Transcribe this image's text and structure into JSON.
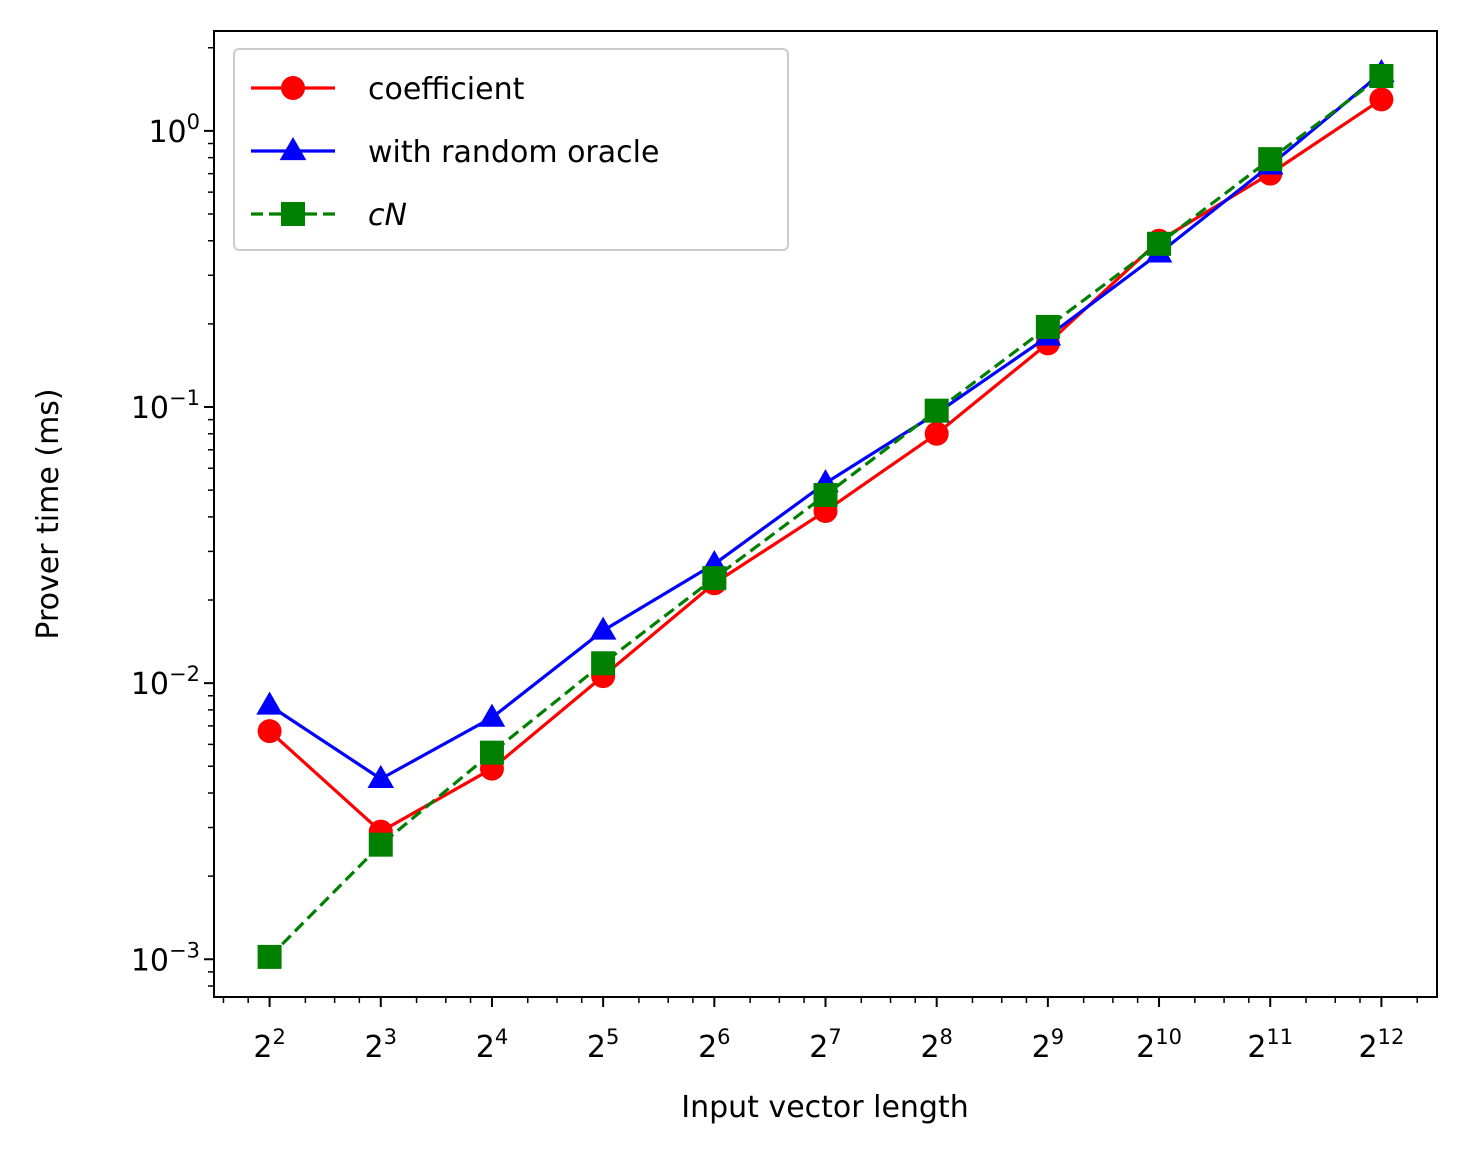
{
  "chart_data": {
    "type": "line",
    "xlabel": "Input vector length",
    "ylabel": "Prover time (ms)",
    "xscale": "log2",
    "yscale": "log10",
    "x_exponents": [
      2,
      3,
      4,
      5,
      6,
      7,
      8,
      9,
      10,
      11,
      12
    ],
    "x_tick_labels": [
      {
        "base": "2",
        "exp": "2"
      },
      {
        "base": "2",
        "exp": "3"
      },
      {
        "base": "2",
        "exp": "4"
      },
      {
        "base": "2",
        "exp": "5"
      },
      {
        "base": "2",
        "exp": "6"
      },
      {
        "base": "2",
        "exp": "7"
      },
      {
        "base": "2",
        "exp": "8"
      },
      {
        "base": "2",
        "exp": "9"
      },
      {
        "base": "2",
        "exp": "10"
      },
      {
        "base": "2",
        "exp": "11"
      },
      {
        "base": "2",
        "exp": "12"
      }
    ],
    "y_ticks": [
      {
        "value": 0.001,
        "base": "10",
        "exp": "−3"
      },
      {
        "value": 0.01,
        "base": "10",
        "exp": "−2"
      },
      {
        "value": 0.1,
        "base": "10",
        "exp": "−1"
      },
      {
        "value": 1,
        "base": "10",
        "exp": "0"
      }
    ],
    "ylim": [
      0.00073,
      2.3
    ],
    "xlim_exponents": [
      1.5,
      12.5
    ],
    "grid": false,
    "legend_position": "top-left",
    "series": [
      {
        "name": "coefficient",
        "color": "#ff0000",
        "marker": "circle",
        "linestyle": "solid",
        "values": [
          0.0067,
          0.0029,
          0.0049,
          0.0106,
          0.023,
          0.042,
          0.08,
          0.17,
          0.4,
          0.7,
          1.3
        ]
      },
      {
        "name": "with random oracle",
        "color": "#0000ff",
        "marker": "triangle",
        "linestyle": "solid",
        "values": [
          0.0083,
          0.0045,
          0.0075,
          0.0155,
          0.027,
          0.053,
          0.095,
          0.18,
          0.36,
          0.75,
          1.62
        ]
      },
      {
        "name": "cN",
        "italic": true,
        "color": "#008000",
        "marker": "square",
        "linestyle": "dashed",
        "values": [
          0.00102,
          0.0026,
          0.0056,
          0.0118,
          0.024,
          0.048,
          0.097,
          0.195,
          0.39,
          0.79,
          1.58
        ]
      }
    ]
  }
}
